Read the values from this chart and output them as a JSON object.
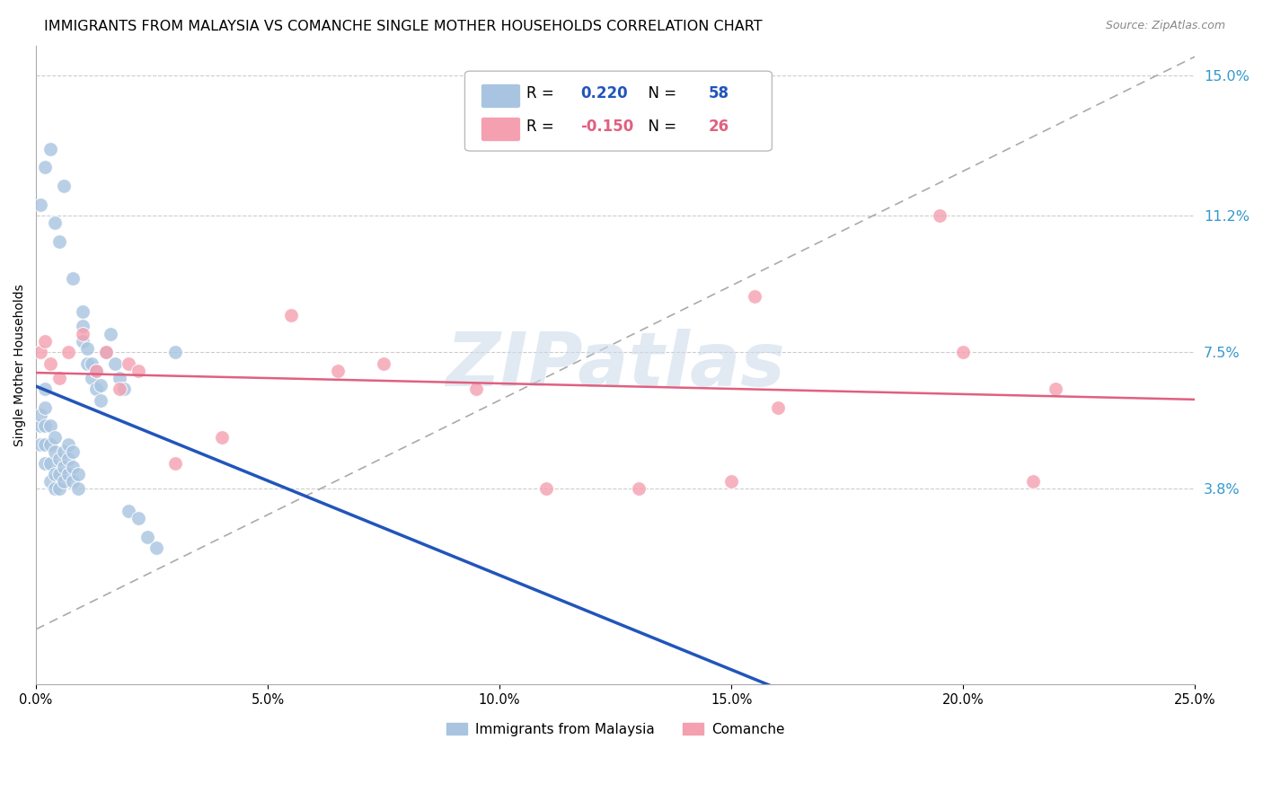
{
  "title": "IMMIGRANTS FROM MALAYSIA VS COMANCHE SINGLE MOTHER HOUSEHOLDS CORRELATION CHART",
  "source": "Source: ZipAtlas.com",
  "ylabel": "Single Mother Households",
  "xlabel_ticks": [
    "0.0%",
    "5.0%",
    "10.0%",
    "15.0%",
    "20.0%",
    "25.0%"
  ],
  "xlabel_vals": [
    0.0,
    0.05,
    0.1,
    0.15,
    0.2,
    0.25
  ],
  "ylabel_ticks": [
    "3.8%",
    "7.5%",
    "11.2%",
    "15.0%"
  ],
  "ylabel_vals": [
    0.038,
    0.075,
    0.112,
    0.15
  ],
  "xmin": 0.0,
  "xmax": 0.25,
  "ymin": 0.0,
  "ymax": 0.155,
  "R_blue": 0.22,
  "N_blue": 58,
  "R_pink": -0.15,
  "N_pink": 26,
  "legend_label_blue": "Immigrants from Malaysia",
  "legend_label_pink": "Comanche",
  "blue_color": "#a8c4e0",
  "pink_color": "#f4a0b0",
  "blue_line_color": "#2255bb",
  "pink_line_color": "#e06080",
  "dash_line_color": "#aaaaaa",
  "watermark_color": "#cddcec",
  "watermark_text": "ZIPatlas",
  "blue_scatter_x": [
    0.001,
    0.001,
    0.001,
    0.002,
    0.002,
    0.002,
    0.002,
    0.002,
    0.003,
    0.003,
    0.003,
    0.003,
    0.004,
    0.004,
    0.004,
    0.004,
    0.005,
    0.005,
    0.005,
    0.006,
    0.006,
    0.006,
    0.007,
    0.007,
    0.007,
    0.008,
    0.008,
    0.008,
    0.009,
    0.009,
    0.01,
    0.01,
    0.01,
    0.011,
    0.011,
    0.012,
    0.012,
    0.013,
    0.013,
    0.014,
    0.014,
    0.015,
    0.016,
    0.017,
    0.018,
    0.019,
    0.02,
    0.022,
    0.024,
    0.026,
    0.001,
    0.002,
    0.003,
    0.004,
    0.005,
    0.006,
    0.008,
    0.03
  ],
  "blue_scatter_y": [
    0.05,
    0.055,
    0.058,
    0.045,
    0.05,
    0.055,
    0.06,
    0.065,
    0.04,
    0.045,
    0.05,
    0.055,
    0.038,
    0.042,
    0.048,
    0.052,
    0.038,
    0.042,
    0.046,
    0.04,
    0.044,
    0.048,
    0.042,
    0.046,
    0.05,
    0.04,
    0.044,
    0.048,
    0.038,
    0.042,
    0.078,
    0.082,
    0.086,
    0.072,
    0.076,
    0.068,
    0.072,
    0.065,
    0.07,
    0.062,
    0.066,
    0.075,
    0.08,
    0.072,
    0.068,
    0.065,
    0.032,
    0.03,
    0.025,
    0.022,
    0.115,
    0.125,
    0.13,
    0.11,
    0.105,
    0.12,
    0.095,
    0.075
  ],
  "pink_scatter_x": [
    0.001,
    0.002,
    0.003,
    0.005,
    0.007,
    0.01,
    0.013,
    0.015,
    0.018,
    0.02,
    0.022,
    0.03,
    0.04,
    0.055,
    0.065,
    0.075,
    0.095,
    0.11,
    0.13,
    0.15,
    0.155,
    0.16,
    0.195,
    0.2,
    0.215,
    0.22
  ],
  "pink_scatter_y": [
    0.075,
    0.078,
    0.072,
    0.068,
    0.075,
    0.08,
    0.07,
    0.075,
    0.065,
    0.072,
    0.07,
    0.045,
    0.052,
    0.085,
    0.07,
    0.072,
    0.065,
    0.038,
    0.038,
    0.04,
    0.09,
    0.06,
    0.112,
    0.075,
    0.04,
    0.065
  ],
  "title_fontsize": 11.5,
  "source_fontsize": 9,
  "legend_fontsize": 12,
  "tick_fontsize": 10.5
}
